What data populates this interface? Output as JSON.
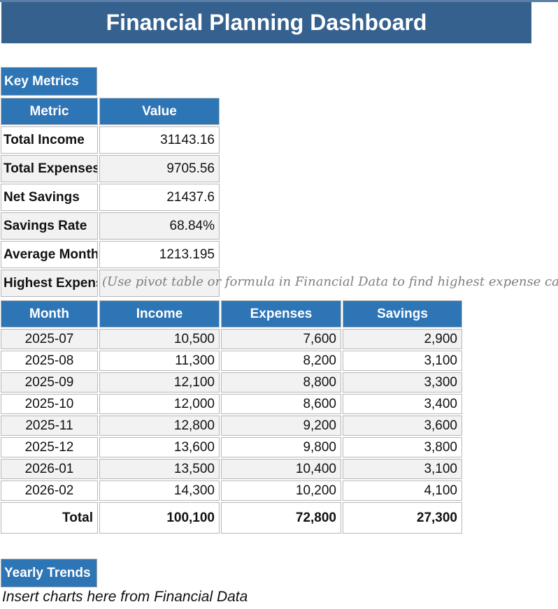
{
  "title": "Financial Planning Dashboard",
  "colors": {
    "banner_blue": "#35618F",
    "header_blue": "#2E75B6",
    "stripe_gray": "#F2F2F2",
    "border_gray": "#B7B7B7",
    "note_gray": "#7F7F7F"
  },
  "sections": {
    "key_metrics_label": "Key Metrics",
    "yearly_trends_label": "Yearly Trends",
    "charts_note": "Insert charts here from Financial Data"
  },
  "metrics_table": {
    "headers": [
      "Metric",
      "Value"
    ],
    "rows": [
      {
        "metric": "Total Income",
        "value": "31143.16",
        "note": ""
      },
      {
        "metric": "Total Expenses",
        "value": "9705.56",
        "note": ""
      },
      {
        "metric": "Net Savings",
        "value": "21437.6",
        "note": ""
      },
      {
        "metric": "Savings Rate",
        "value": "68.84%",
        "note": ""
      },
      {
        "metric": "Average Monthly",
        "value": "1213.195",
        "note": ""
      },
      {
        "metric": "Highest Expense",
        "value": "",
        "note": "(Use pivot table or formula in Financial Data to find highest expense category)"
      }
    ]
  },
  "monthly_table": {
    "headers": [
      "Month",
      "Income",
      "Expenses",
      "Savings"
    ],
    "rows": [
      [
        "2025-07",
        "10,500",
        "7,600",
        "2,900"
      ],
      [
        "2025-08",
        "11,300",
        "8,200",
        "3,100"
      ],
      [
        "2025-09",
        "12,100",
        "8,800",
        "3,300"
      ],
      [
        "2025-10",
        "12,000",
        "8,600",
        "3,400"
      ],
      [
        "2025-11",
        "12,800",
        "9,200",
        "3,600"
      ],
      [
        "2025-12",
        "13,600",
        "9,800",
        "3,800"
      ],
      [
        "2026-01",
        "13,500",
        "10,400",
        "3,100"
      ],
      [
        "2026-02",
        "14,300",
        "10,200",
        "4,100"
      ]
    ],
    "total_row": [
      "Total",
      "100,100",
      "72,800",
      "27,300"
    ]
  }
}
